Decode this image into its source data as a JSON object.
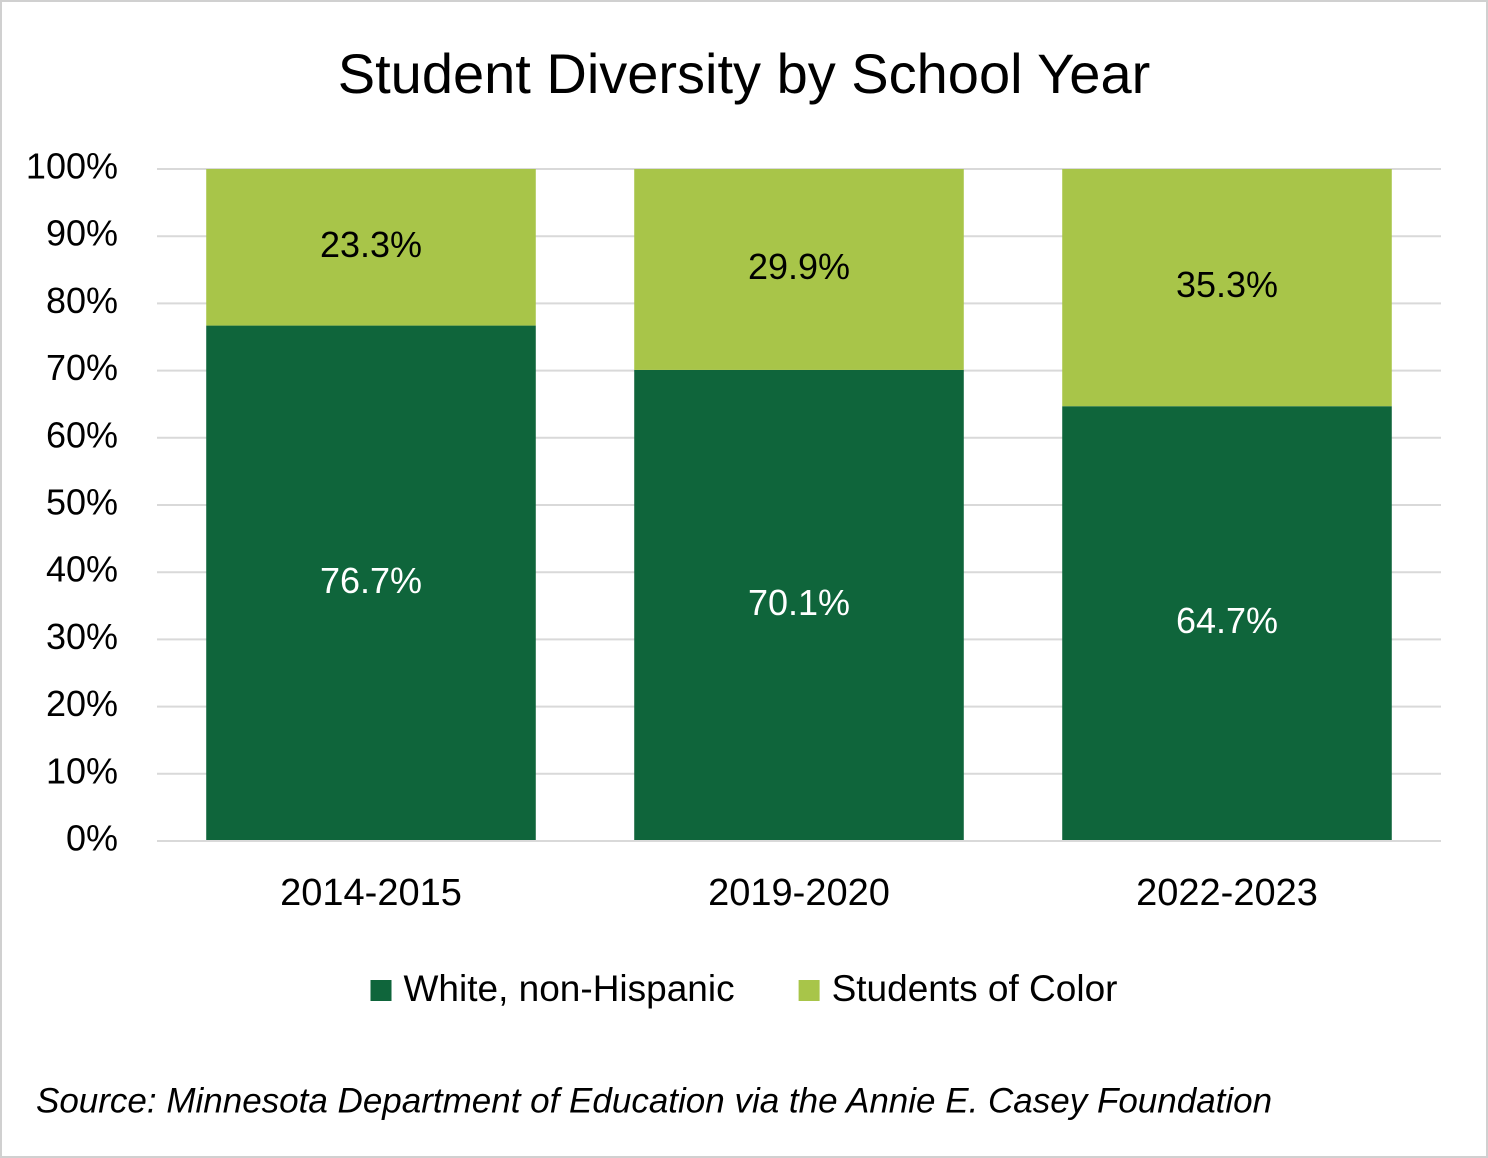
{
  "chart_data": {
    "type": "stacked-bar",
    "title": "Student Diversity by School Year",
    "categories": [
      "2014-2015",
      "2019-2020",
      "2022-2023"
    ],
    "series": [
      {
        "name": "White, non-Hispanic",
        "color": "#0f653b",
        "values": [
          76.7,
          70.1,
          64.7
        ],
        "value_labels": [
          "76.7%",
          "70.1%",
          "64.7%"
        ]
      },
      {
        "name": "Students of Color",
        "color": "#a8c549",
        "values": [
          23.3,
          29.9,
          35.3
        ],
        "value_labels": [
          "23.3%",
          "29.9%",
          "35.3%"
        ]
      }
    ],
    "ylim": [
      0,
      100
    ],
    "yticks": [
      {
        "value": 0,
        "label": "0%"
      },
      {
        "value": 10,
        "label": "10%"
      },
      {
        "value": 20,
        "label": "20%"
      },
      {
        "value": 30,
        "label": "30%"
      },
      {
        "value": 40,
        "label": "40%"
      },
      {
        "value": 50,
        "label": "50%"
      },
      {
        "value": 60,
        "label": "60%"
      },
      {
        "value": 70,
        "label": "70%"
      },
      {
        "value": 80,
        "label": "80%"
      },
      {
        "value": 90,
        "label": "90%"
      },
      {
        "value": 100,
        "label": "100%"
      }
    ],
    "grid": true,
    "legend": "bottom",
    "source": "Source: Minnesota Department of Education via the Annie E. Casey Foundation"
  }
}
